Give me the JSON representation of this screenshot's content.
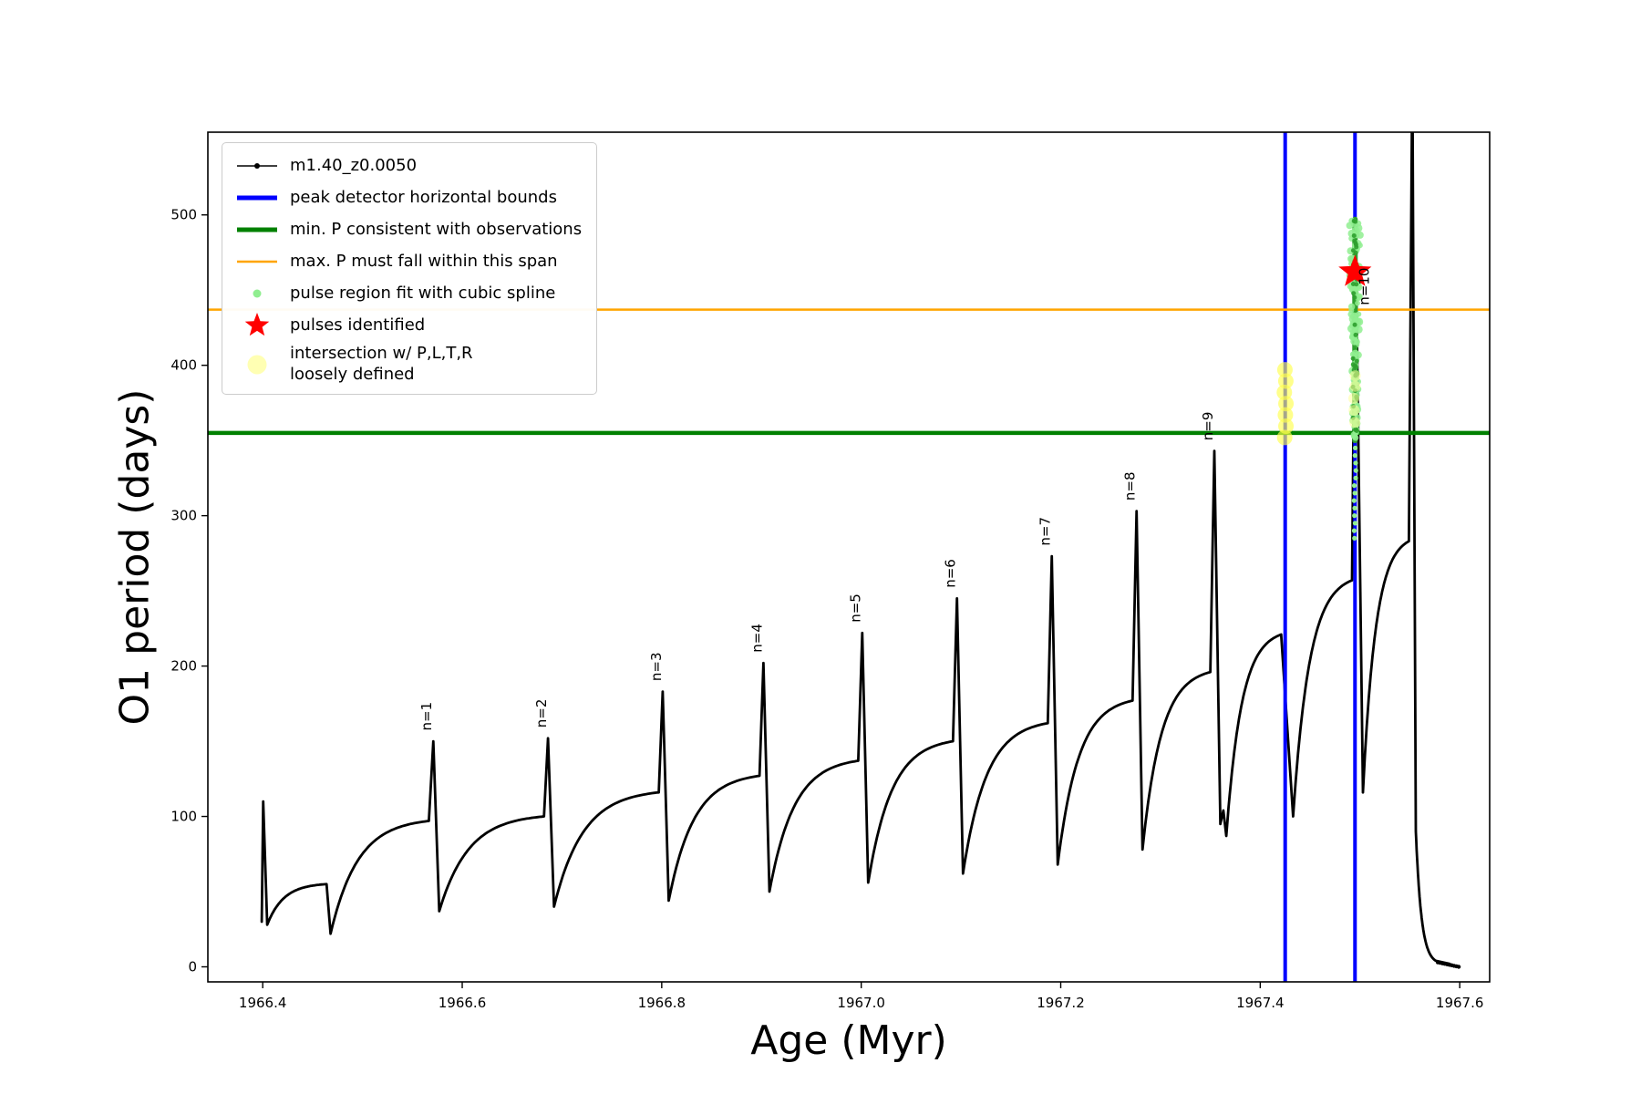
{
  "chart_data": {
    "type": "line",
    "title": "",
    "xlabel": "Age (Myr)",
    "ylabel": "O1 period (days)",
    "xlim": [
      1966.345,
      1967.63
    ],
    "ylim": [
      -10,
      555
    ],
    "grid": false,
    "legend_position": "upper-left",
    "xticks": [
      {
        "v": 1966.4,
        "label": "1966.4"
      },
      {
        "v": 1966.6,
        "label": "1966.6"
      },
      {
        "v": 1966.8,
        "label": "1966.8"
      },
      {
        "v": 1967.0,
        "label": "1967.0"
      },
      {
        "v": 1967.2,
        "label": "1967.2"
      },
      {
        "v": 1967.4,
        "label": "1967.4"
      },
      {
        "v": 1967.6,
        "label": "1967.6"
      }
    ],
    "yticks": [
      {
        "v": 0,
        "label": "0"
      },
      {
        "v": 100,
        "label": "100"
      },
      {
        "v": 200,
        "label": "200"
      },
      {
        "v": 300,
        "label": "300"
      },
      {
        "v": 400,
        "label": "400"
      },
      {
        "v": 500,
        "label": "500"
      }
    ],
    "series": [
      {
        "name": "m1.40_z0.0050",
        "color": "#000000",
        "segments": [
          [
            "move",
            1966.399,
            30
          ],
          [
            "line",
            1966.4005,
            110
          ],
          [
            "line",
            1966.4045,
            28
          ],
          [
            "sat",
            1966.464,
            55
          ],
          [
            "line",
            1966.468,
            22
          ],
          [
            "sat",
            1966.5665,
            97
          ],
          [
            "line",
            1966.571,
            150
          ],
          [
            "line",
            1966.577,
            37
          ],
          [
            "sat",
            1966.682,
            100
          ],
          [
            "line",
            1966.686,
            152
          ],
          [
            "line",
            1966.692,
            40
          ],
          [
            "sat",
            1966.797,
            116
          ],
          [
            "line",
            1966.801,
            183
          ],
          [
            "line",
            1966.807,
            44
          ],
          [
            "sat",
            1966.898,
            127
          ],
          [
            "line",
            1966.902,
            202
          ],
          [
            "line",
            1966.908,
            50
          ],
          [
            "sat",
            1966.997,
            137
          ],
          [
            "line",
            1967.001,
            222
          ],
          [
            "line",
            1967.007,
            56
          ],
          [
            "sat",
            1967.092,
            150
          ],
          [
            "line",
            1967.096,
            245
          ],
          [
            "line",
            1967.102,
            62
          ],
          [
            "sat",
            1967.187,
            162
          ],
          [
            "line",
            1967.191,
            273
          ],
          [
            "line",
            1967.197,
            68
          ],
          [
            "sat",
            1967.272,
            177
          ],
          [
            "line",
            1967.276,
            303
          ],
          [
            "line",
            1967.282,
            78
          ],
          [
            "sat",
            1967.35,
            196
          ],
          [
            "line",
            1967.354,
            343
          ],
          [
            "line",
            1967.36,
            95
          ],
          [
            "line",
            1967.363,
            104
          ],
          [
            "line",
            1967.366,
            87
          ],
          [
            "sat",
            1967.421,
            221
          ],
          [
            "line",
            1967.433,
            100
          ],
          [
            "sat",
            1967.492,
            257
          ],
          [
            "line",
            1967.4955,
            497
          ],
          [
            "line",
            1967.503,
            116
          ],
          [
            "sat",
            1967.549,
            283
          ],
          [
            "line",
            1967.5525,
            600
          ],
          [
            "line",
            1967.556,
            90
          ],
          [
            "sat",
            1967.576,
            4
          ],
          [
            "line",
            1967.59,
            2
          ]
        ]
      }
    ],
    "peaks": [
      {
        "label": "n=1",
        "x": 1966.571,
        "y": 150,
        "lx": 1966.569,
        "ly": 157
      },
      {
        "label": "n=2",
        "x": 1966.686,
        "y": 152,
        "lx": 1966.684,
        "ly": 159
      },
      {
        "label": "n=3",
        "x": 1966.801,
        "y": 183,
        "lx": 1966.799,
        "ly": 190
      },
      {
        "label": "n=4",
        "x": 1966.902,
        "y": 202,
        "lx": 1966.9,
        "ly": 209
      },
      {
        "label": "n=5",
        "x": 1967.001,
        "y": 222,
        "lx": 1966.999,
        "ly": 229
      },
      {
        "label": "n=6",
        "x": 1967.096,
        "y": 245,
        "lx": 1967.094,
        "ly": 252
      },
      {
        "label": "n=7",
        "x": 1967.191,
        "y": 273,
        "lx": 1967.189,
        "ly": 280
      },
      {
        "label": "n=8",
        "x": 1967.276,
        "y": 303,
        "lx": 1967.274,
        "ly": 310
      },
      {
        "label": "n=9",
        "x": 1967.354,
        "y": 343,
        "lx": 1967.352,
        "ly": 350
      },
      {
        "label": "n=10",
        "x": 1967.4955,
        "y": 497,
        "lx": 1967.509,
        "ly": 440
      }
    ],
    "hlines": [
      {
        "y": 437,
        "color": "#ffa500",
        "width": 2.5,
        "name": "max-p-span-line"
      },
      {
        "y": 355,
        "color": "#008000",
        "width": 4.5,
        "name": "min-p-line"
      }
    ],
    "vlines": [
      {
        "x": 1967.425,
        "color": "#0000ff",
        "width": 4,
        "name": "peak-bound-left-line"
      },
      {
        "x": 1967.495,
        "color": "#0000ff",
        "width": 4,
        "name": "peak-bound-right-line"
      }
    ],
    "pulse_region": {
      "x": 1967.495,
      "y_min": 285,
      "y_max": 497,
      "dense_min": 350,
      "color": "#90ee90",
      "core_color": "#2e9e2e"
    },
    "intersection_dots": {
      "x": 1967.425,
      "y_min": 352,
      "y_max": 397,
      "count": 7,
      "color": "#ffff4d"
    },
    "column_yellow_dots": {
      "x": 1967.495,
      "ys": [
        362,
        370,
        378,
        386,
        393
      ],
      "color": "#ffff99"
    },
    "star": {
      "x": 1967.495,
      "y": 462,
      "color": "#ff0000"
    },
    "tail_dots": {
      "x_start": 1967.578,
      "x_end": 1967.599,
      "y_start": 3,
      "y_end": 0,
      "count": 10
    }
  },
  "legend": {
    "items": [
      {
        "sample": "line-dot",
        "color": "#000000",
        "stroke_width": 1.6,
        "label": "m1.40_z0.0050"
      },
      {
        "sample": "line",
        "color": "#0000ff",
        "stroke_width": 5,
        "label": "peak detector horizontal bounds"
      },
      {
        "sample": "line",
        "color": "#008000",
        "stroke_width": 5,
        "label": "min. P consistent with observations"
      },
      {
        "sample": "line",
        "color": "#ffa500",
        "stroke_width": 2.5,
        "label": "max. P must fall within this span"
      },
      {
        "sample": "dot",
        "color": "#90ee90",
        "size": 9,
        "label": "pulse region fit with cubic spline"
      },
      {
        "sample": "star",
        "color": "#ff0000",
        "size": 28,
        "label": "pulses identified"
      },
      {
        "sample": "dot",
        "color": "#ffffb3",
        "size": 21,
        "label": "intersection w/ P,L,T,R\nloosely defined"
      }
    ]
  }
}
